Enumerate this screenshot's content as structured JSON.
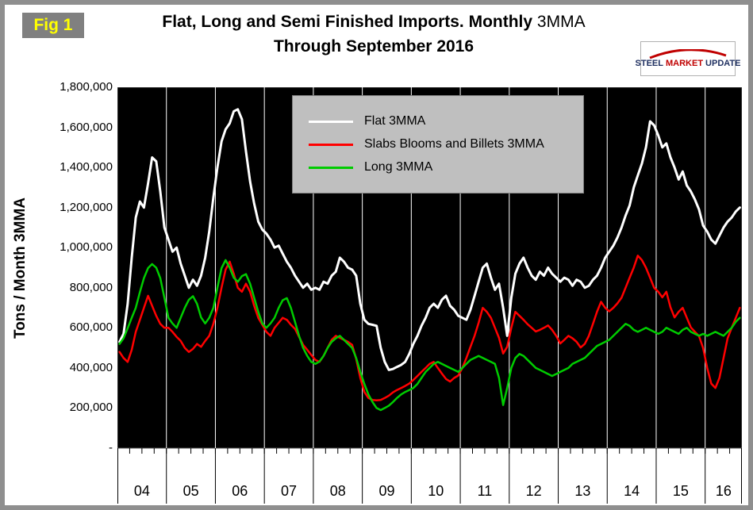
{
  "fig_label": "Fig 1",
  "title": {
    "line1_bold": "Flat, Long and Semi Finished Imports. Monthly",
    "line1_normal": "3MMA",
    "line2": "Through September 2016"
  },
  "logo": {
    "steel": "STEEL",
    "market": "MARKET",
    "update": "UPDATE"
  },
  "y_axis_title": "Tons / Month 3MMA",
  "colors": {
    "plot_background": "#000000",
    "flat_line": "#ffffff",
    "slabs_line": "#ff0000",
    "long_line": "#00cc00",
    "frame_border": "#8f8f8f",
    "fig_badge_bg": "#808080",
    "fig_badge_text": "#ffff00",
    "legend_bg": "#bfbfbf"
  },
  "chart_data": {
    "type": "line",
    "title": "Flat, Long and Semi Finished Imports. Monthly 3MMA Through September 2016",
    "ylabel": "Tons / Month 3MMA",
    "ylim": [
      0,
      1800000
    ],
    "ytick_interval": 200000,
    "ytick_labels": [
      "-",
      "200,000",
      "400,000",
      "600,000",
      "800,000",
      "1,000,000",
      "1,200,000",
      "1,400,000",
      "1,600,000",
      "1,800,000"
    ],
    "x_unit": "month",
    "x_start": "2004-01",
    "x_end": "2016-09",
    "x_year_labels": [
      "04",
      "05",
      "06",
      "07",
      "08",
      "09",
      "10",
      "11",
      "12",
      "13",
      "14",
      "15",
      "16"
    ],
    "background": "#000000",
    "grid": "vertical white lines at each year boundary",
    "legend_position": "top-center inside plot area",
    "series": [
      {
        "name": "Flat 3MMA",
        "color": "#ffffff",
        "values": [
          530000,
          570000,
          720000,
          950000,
          1150000,
          1230000,
          1200000,
          1320000,
          1450000,
          1430000,
          1280000,
          1100000,
          1040000,
          980000,
          1000000,
          920000,
          860000,
          800000,
          840000,
          810000,
          860000,
          950000,
          1080000,
          1250000,
          1400000,
          1530000,
          1590000,
          1620000,
          1680000,
          1690000,
          1640000,
          1480000,
          1330000,
          1220000,
          1130000,
          1090000,
          1070000,
          1040000,
          1000000,
          1010000,
          970000,
          930000,
          900000,
          860000,
          830000,
          800000,
          820000,
          790000,
          800000,
          790000,
          830000,
          820000,
          860000,
          880000,
          950000,
          930000,
          900000,
          890000,
          860000,
          720000,
          640000,
          620000,
          615000,
          610000,
          500000,
          430000,
          390000,
          395000,
          405000,
          415000,
          430000,
          470000,
          520000,
          560000,
          610000,
          650000,
          700000,
          720000,
          700000,
          740000,
          760000,
          710000,
          690000,
          660000,
          650000,
          640000,
          690000,
          760000,
          830000,
          900000,
          920000,
          850000,
          790000,
          820000,
          700000,
          560000,
          750000,
          870000,
          920000,
          950000,
          900000,
          860000,
          840000,
          880000,
          860000,
          900000,
          870000,
          850000,
          830000,
          850000,
          840000,
          810000,
          840000,
          830000,
          800000,
          810000,
          840000,
          860000,
          900000,
          950000,
          980000,
          1010000,
          1050000,
          1100000,
          1160000,
          1210000,
          1300000,
          1360000,
          1420000,
          1500000,
          1630000,
          1610000,
          1560000,
          1500000,
          1520000,
          1450000,
          1400000,
          1340000,
          1380000,
          1310000,
          1280000,
          1240000,
          1190000,
          1110000,
          1080000,
          1040000,
          1020000,
          1060000,
          1100000,
          1130000,
          1150000,
          1180000,
          1200000
        ]
      },
      {
        "name": "Slabs Blooms and Billets 3MMA",
        "color": "#ff0000",
        "values": [
          480000,
          450000,
          430000,
          490000,
          580000,
          640000,
          700000,
          760000,
          710000,
          660000,
          620000,
          600000,
          600000,
          580000,
          555000,
          535000,
          500000,
          480000,
          495000,
          520000,
          505000,
          535000,
          560000,
          620000,
          700000,
          800000,
          890000,
          930000,
          870000,
          800000,
          780000,
          820000,
          780000,
          710000,
          650000,
          615000,
          580000,
          560000,
          600000,
          625000,
          650000,
          640000,
          615000,
          595000,
          555000,
          515000,
          490000,
          465000,
          440000,
          430000,
          460000,
          500000,
          540000,
          560000,
          550000,
          540000,
          530000,
          515000,
          445000,
          350000,
          280000,
          250000,
          240000,
          238000,
          240000,
          250000,
          262000,
          278000,
          290000,
          300000,
          310000,
          322000,
          340000,
          360000,
          380000,
          400000,
          420000,
          430000,
          400000,
          372000,
          345000,
          332000,
          350000,
          362000,
          400000,
          450000,
          505000,
          560000,
          625000,
          700000,
          680000,
          650000,
          600000,
          550000,
          472000,
          505000,
          600000,
          680000,
          660000,
          640000,
          618000,
          600000,
          582000,
          590000,
          600000,
          612000,
          590000,
          560000,
          522000,
          540000,
          560000,
          548000,
          530000,
          502000,
          520000,
          560000,
          620000,
          680000,
          730000,
          700000,
          682000,
          700000,
          722000,
          750000,
          800000,
          850000,
          900000,
          960000,
          938000,
          900000,
          850000,
          800000,
          780000,
          752000,
          780000,
          702000,
          652000,
          680000,
          700000,
          650000,
          602000,
          580000,
          558000,
          500000,
          400000,
          322000,
          300000,
          350000,
          450000,
          548000,
          600000,
          650000,
          700000
        ]
      },
      {
        "name": "Long 3MMA",
        "color": "#00cc00",
        "values": [
          520000,
          548000,
          598000,
          650000,
          700000,
          778000,
          848000,
          898000,
          918000,
          900000,
          848000,
          750000,
          650000,
          622000,
          600000,
          650000,
          700000,
          740000,
          758000,
          720000,
          652000,
          622000,
          650000,
          700000,
          800000,
          898000,
          938000,
          900000,
          850000,
          830000,
          858000,
          868000,
          820000,
          750000,
          680000,
          622000,
          600000,
          622000,
          650000,
          700000,
          738000,
          748000,
          700000,
          630000,
          560000,
          500000,
          460000,
          430000,
          420000,
          432000,
          460000,
          500000,
          530000,
          548000,
          560000,
          540000,
          520000,
          500000,
          450000,
          380000,
          320000,
          268000,
          230000,
          200000,
          190000,
          200000,
          212000,
          230000,
          250000,
          268000,
          280000,
          290000,
          300000,
          320000,
          350000,
          380000,
          400000,
          420000,
          430000,
          420000,
          410000,
          400000,
          390000,
          380000,
          400000,
          420000,
          440000,
          450000,
          460000,
          450000,
          440000,
          430000,
          420000,
          350000,
          215000,
          300000,
          400000,
          450000,
          470000,
          460000,
          440000,
          420000,
          400000,
          390000,
          380000,
          370000,
          360000,
          370000,
          380000,
          390000,
          400000,
          420000,
          430000,
          440000,
          450000,
          470000,
          490000,
          510000,
          520000,
          530000,
          540000,
          560000,
          580000,
          600000,
          620000,
          610000,
          590000,
          580000,
          590000,
          600000,
          590000,
          580000,
          570000,
          580000,
          600000,
          590000,
          580000,
          570000,
          590000,
          600000,
          580000,
          570000,
          560000,
          570000,
          560000,
          570000,
          580000,
          570000,
          560000,
          580000,
          600000,
          630000,
          650000
        ]
      }
    ]
  }
}
